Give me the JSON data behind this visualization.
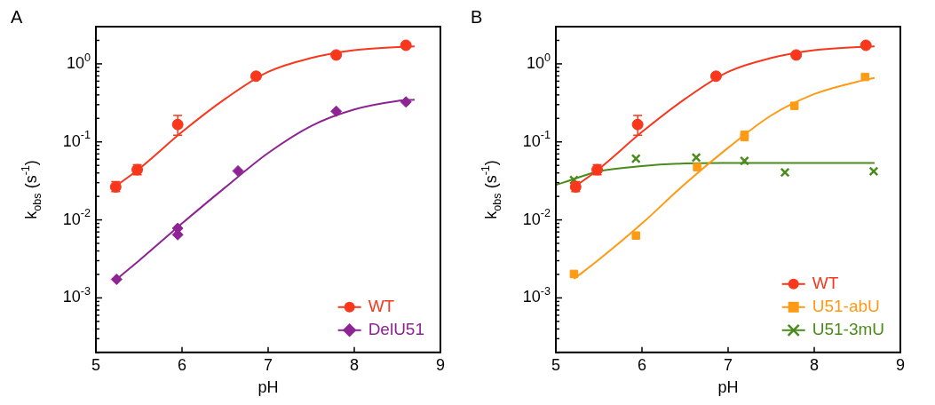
{
  "chart_data": [
    {
      "type": "scatter",
      "title": "A",
      "xlabel": "pH",
      "ylabel": "k$_{obs}$ (s$^{-1}$)",
      "log": "y",
      "grid": false,
      "legend": "bottom right",
      "xlim": [
        5,
        9
      ],
      "xticks": [
        5,
        6,
        7,
        8,
        9
      ],
      "ylim": [
        0.0002,
        3
      ],
      "yticks": [
        {
          "value": 0.0002,
          "label": null
        },
        {
          "value": 0.0003,
          "label": null
        },
        {
          "value": 0.0004,
          "label": null
        },
        {
          "value": 0.0005,
          "label": null
        },
        {
          "value": 0.0006,
          "label": null
        },
        {
          "value": 0.0007,
          "label": null
        },
        {
          "value": 0.0008,
          "label": null
        },
        {
          "value": 0.0009,
          "label": null
        },
        {
          "value": 0.001,
          "label": "10$^{-3}$"
        },
        {
          "value": 0.002,
          "label": null
        },
        {
          "value": 0.003,
          "label": null
        },
        {
          "value": 0.004,
          "label": null
        },
        {
          "value": 0.005,
          "label": null
        },
        {
          "value": 0.006,
          "label": null
        },
        {
          "value": 0.007,
          "label": null
        },
        {
          "value": 0.008,
          "label": null
        },
        {
          "value": 0.009,
          "label": null
        },
        {
          "value": 0.01,
          "label": "10$^{-2}$"
        },
        {
          "value": 0.02,
          "label": null
        },
        {
          "value": 0.03,
          "label": null
        },
        {
          "value": 0.04,
          "label": null
        },
        {
          "value": 0.05,
          "label": null
        },
        {
          "value": 0.06,
          "label": null
        },
        {
          "value": 0.07,
          "label": null
        },
        {
          "value": 0.08,
          "label": null
        },
        {
          "value": 0.09,
          "label": null
        },
        {
          "value": 0.1,
          "label": "10$^{-1}$"
        },
        {
          "value": 0.2,
          "label": null
        },
        {
          "value": 0.3,
          "label": null
        },
        {
          "value": 0.4,
          "label": null
        },
        {
          "value": 0.5,
          "label": null
        },
        {
          "value": 0.6,
          "label": null
        },
        {
          "value": 0.7,
          "label": null
        },
        {
          "value": 0.8,
          "label": null
        },
        {
          "value": 0.9,
          "label": null
        },
        {
          "value": 1,
          "label": "10$^{0}$"
        },
        {
          "value": 2,
          "label": null
        },
        {
          "value": 3,
          "label": null
        }
      ],
      "series": [
        {
          "type": "line",
          "color": "#f8371c",
          "marker": "none",
          "line_style": "solid",
          "x": [
            5.23,
            5.5,
            6,
            6.5,
            7,
            7.5,
            8,
            8.5,
            8.7
          ],
          "values": [
            0.027,
            0.045,
            0.134,
            0.355,
            0.79,
            1.19,
            1.5,
            1.64,
            1.67
          ]
        },
        {
          "type": "line",
          "color": "#8e2494",
          "marker": "none",
          "line_style": "solid",
          "x": [
            5.23,
            5.5,
            6,
            6.5,
            7,
            7.5,
            8,
            8.5,
            8.7
          ],
          "values": [
            0.0017,
            0.003,
            0.009,
            0.026,
            0.072,
            0.16,
            0.26,
            0.334,
            0.348
          ]
        },
        {
          "type": "scatter",
          "name": "WT",
          "color": "#f8371c",
          "marker": "circle",
          "x": [
            5.23,
            5.48,
            5.95,
            6.86,
            7.79,
            8.6
          ],
          "values": [
            0.0265,
            0.044,
            0.167,
            0.695,
            1.3,
            1.73
          ],
          "errors": [
            [
              0.023,
              0.031
            ],
            [
              0.038,
              0.051
            ],
            [
              0.122,
              0.218
            ],
            null,
            null,
            null
          ]
        },
        {
          "type": "scatter",
          "name": "DelU51",
          "color": "#8e2494",
          "marker": "diamond",
          "x": [
            5.24,
            5.95,
            5.95,
            6.65,
            7.79,
            8.6
          ],
          "values": [
            0.00173,
            0.0078,
            0.00645,
            0.0424,
            0.247,
            0.325
          ]
        }
      ]
    },
    {
      "type": "scatter",
      "title": "B",
      "xlabel": "pH",
      "ylabel": "k$_{obs}$ (s$^{-1}$)",
      "log": "y",
      "grid": false,
      "legend": "bottom right",
      "xlim": [
        5,
        9
      ],
      "xticks": [
        5,
        6,
        7,
        8,
        9
      ],
      "ylim": [
        0.0002,
        3
      ],
      "yticks": [
        {
          "value": 0.0002,
          "label": null
        },
        {
          "value": 0.0003,
          "label": null
        },
        {
          "value": 0.0004,
          "label": null
        },
        {
          "value": 0.0005,
          "label": null
        },
        {
          "value": 0.0006,
          "label": null
        },
        {
          "value": 0.0007,
          "label": null
        },
        {
          "value": 0.0008,
          "label": null
        },
        {
          "value": 0.0009,
          "label": null
        },
        {
          "value": 0.001,
          "label": "10$^{-3}$"
        },
        {
          "value": 0.002,
          "label": null
        },
        {
          "value": 0.003,
          "label": null
        },
        {
          "value": 0.004,
          "label": null
        },
        {
          "value": 0.005,
          "label": null
        },
        {
          "value": 0.006,
          "label": null
        },
        {
          "value": 0.007,
          "label": null
        },
        {
          "value": 0.008,
          "label": null
        },
        {
          "value": 0.009,
          "label": null
        },
        {
          "value": 0.01,
          "label": "10$^{-2}$"
        },
        {
          "value": 0.02,
          "label": null
        },
        {
          "value": 0.03,
          "label": null
        },
        {
          "value": 0.04,
          "label": null
        },
        {
          "value": 0.05,
          "label": null
        },
        {
          "value": 0.06,
          "label": null
        },
        {
          "value": 0.07,
          "label": null
        },
        {
          "value": 0.08,
          "label": null
        },
        {
          "value": 0.09,
          "label": null
        },
        {
          "value": 0.1,
          "label": "10$^{-1}$"
        },
        {
          "value": 0.2,
          "label": null
        },
        {
          "value": 0.3,
          "label": null
        },
        {
          "value": 0.4,
          "label": null
        },
        {
          "value": 0.5,
          "label": null
        },
        {
          "value": 0.6,
          "label": null
        },
        {
          "value": 0.7,
          "label": null
        },
        {
          "value": 0.8,
          "label": null
        },
        {
          "value": 0.9,
          "label": null
        },
        {
          "value": 1,
          "label": "10$^{0}$"
        },
        {
          "value": 2,
          "label": null
        },
        {
          "value": 3,
          "label": null
        }
      ],
      "series": [
        {
          "type": "line",
          "color": "#f8371c",
          "marker": "none",
          "line_style": "solid",
          "x": [
            5.23,
            5.5,
            6,
            6.5,
            7,
            7.5,
            8,
            8.5,
            8.7
          ],
          "values": [
            0.027,
            0.045,
            0.134,
            0.355,
            0.79,
            1.19,
            1.5,
            1.64,
            1.67
          ]
        },
        {
          "type": "line",
          "color": "#ff9a14",
          "marker": "none",
          "line_style": "solid",
          "x": [
            5.21,
            5.5,
            6,
            6.5,
            7,
            7.5,
            8,
            8.5,
            8.7
          ],
          "values": [
            0.00175,
            0.0031,
            0.009,
            0.029,
            0.084,
            0.218,
            0.41,
            0.59,
            0.66
          ]
        },
        {
          "type": "line",
          "color": "#4a8c1c",
          "marker": "none",
          "line_style": "solid",
          "x": [
            5,
            5.25,
            5.5,
            6,
            6.5,
            7,
            8.7
          ],
          "values": [
            0.028,
            0.0346,
            0.042,
            0.049,
            0.0528,
            0.0535,
            0.0537
          ]
        },
        {
          "type": "scatter",
          "name": "WT",
          "color": "#f8371c",
          "marker": "circle",
          "x": [
            5.23,
            5.48,
            5.95,
            6.86,
            7.79,
            8.6
          ],
          "values": [
            0.0265,
            0.044,
            0.167,
            0.695,
            1.3,
            1.73
          ],
          "errors": [
            [
              0.023,
              0.031
            ],
            [
              0.038,
              0.051
            ],
            [
              0.122,
              0.218
            ],
            null,
            null,
            null
          ]
        },
        {
          "type": "scatter",
          "name": "U51-abU",
          "color": "#ff9a14",
          "marker": "square",
          "x": [
            5.21,
            5.93,
            6.64,
            7.19,
            7.19,
            7.77,
            8.59
          ],
          "values": [
            0.00203,
            0.0063,
            0.0475,
            0.123,
            0.115,
            0.29,
            0.68
          ]
        },
        {
          "type": "scatter",
          "name": "U51-3mU",
          "color": "#4a8c1c",
          "marker": "cross",
          "x": [
            5.21,
            5.93,
            6.63,
            7.19,
            7.66,
            8.69
          ],
          "values": [
            0.0325,
            0.061,
            0.063,
            0.057,
            0.0405,
            0.042
          ]
        }
      ]
    }
  ]
}
